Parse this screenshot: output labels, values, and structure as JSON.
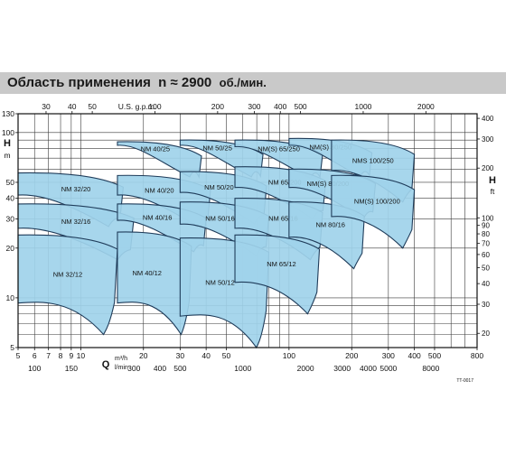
{
  "header": {
    "title": "Область применения",
    "speed": "n ≈ 2900",
    "speed_unit": "об./мин."
  },
  "chart_data": {
    "type": "area",
    "title": "Область применения",
    "xlabel": "Q",
    "xunit_main": "m³/h",
    "xunit_sec": "l/min",
    "xunit_top": "U.S. g.p.m.",
    "ylabel": "H",
    "yunit_left": "m",
    "yunit_right": "ft",
    "x_scale": "log",
    "y_scale": "log",
    "xlim": [
      5,
      800
    ],
    "ylim": [
      5,
      130
    ],
    "grid": true,
    "x_ticks_m3h": [
      "5",
      "6",
      "7",
      "8",
      "9",
      "10",
      "20",
      "30",
      "40",
      "50",
      "100",
      "200",
      "300",
      "400",
      "500",
      "800"
    ],
    "x_ticks_lmin": [
      "100",
      "150",
      "300",
      "400",
      "500",
      "1000",
      "2000",
      "3000",
      "4000",
      "5000",
      "8000"
    ],
    "x_ticks_usgpm": [
      "30",
      "40",
      "50",
      "100",
      "200",
      "300",
      "400",
      "500",
      "1000",
      "2000"
    ],
    "y_ticks_m": [
      "5",
      "10",
      "20",
      "30",
      "40",
      "50",
      "100",
      "130"
    ],
    "y_ticks_ft": [
      "20",
      "30",
      "40",
      "50",
      "60",
      "70",
      "80",
      "90",
      "100",
      "200",
      "300",
      "400"
    ],
    "colors": {
      "fill": "#9fd3ea",
      "stroke": "#1f3c5a"
    },
    "footnote": "TT-0017",
    "series": [
      {
        "name": "NM 32/20",
        "q_range_m3h": [
          5,
          16
        ],
        "h_range_m": [
          27,
          57
        ]
      },
      {
        "name": "NM 32/16",
        "q_range_m3h": [
          5,
          18
        ],
        "h_range_m": [
          17,
          37
        ]
      },
      {
        "name": "NM 32/12",
        "q_range_m3h": [
          5,
          15
        ],
        "h_range_m": [
          6,
          24
        ]
      },
      {
        "name": "NM 40/25",
        "q_range_m3h": [
          15,
          38
        ],
        "h_range_m": [
          54,
          88
        ]
      },
      {
        "name": "NM 40/20",
        "q_range_m3h": [
          15,
          42
        ],
        "h_range_m": [
          27,
          55
        ]
      },
      {
        "name": "NM 40/16",
        "q_range_m3h": [
          15,
          40
        ],
        "h_range_m": [
          19,
          37
        ]
      },
      {
        "name": "NM 40/12",
        "q_range_m3h": [
          15,
          34
        ],
        "h_range_m": [
          6,
          25
        ]
      },
      {
        "name": "NM 50/25",
        "q_range_m3h": [
          30,
          75
        ],
        "h_range_m": [
          54,
          90
        ]
      },
      {
        "name": "NM 50/20",
        "q_range_m3h": [
          30,
          78
        ],
        "h_range_m": [
          28,
          58
        ]
      },
      {
        "name": "NM 50/16",
        "q_range_m3h": [
          30,
          80
        ],
        "h_range_m": [
          18,
          38
        ]
      },
      {
        "name": "NM 50/12",
        "q_range_m3h": [
          30,
          80
        ],
        "h_range_m": [
          5,
          23
        ]
      },
      {
        "name": "NM(S) 65/250",
        "q_range_m3h": [
          55,
          145
        ],
        "h_range_m": [
          53,
          90
        ]
      },
      {
        "name": "NM 65/200",
        "q_range_m3h": [
          55,
          150
        ],
        "h_range_m": [
          30,
          62
        ]
      },
      {
        "name": "NM 65/16",
        "q_range_m3h": [
          55,
          145
        ],
        "h_range_m": [
          17,
          40
        ]
      },
      {
        "name": "NM 65/12",
        "q_range_m3h": [
          55,
          140
        ],
        "h_range_m": [
          8,
          24
        ]
      },
      {
        "name": "NM(S) 80/250",
        "q_range_m3h": [
          100,
          250
        ],
        "h_range_m": [
          54,
          92
        ]
      },
      {
        "name": "NM(S) 80/200",
        "q_range_m3h": [
          100,
          260
        ],
        "h_range_m": [
          30,
          60
        ]
      },
      {
        "name": "NM 80/16",
        "q_range_m3h": [
          100,
          230
        ],
        "h_range_m": [
          15,
          38
        ]
      },
      {
        "name": "NMS 100/250",
        "q_range_m3h": [
          160,
          400
        ],
        "h_range_m": [
          38,
          90
        ]
      },
      {
        "name": "NM(S) 100/200",
        "q_range_m3h": [
          160,
          400
        ],
        "h_range_m": [
          20,
          55
        ]
      }
    ]
  }
}
